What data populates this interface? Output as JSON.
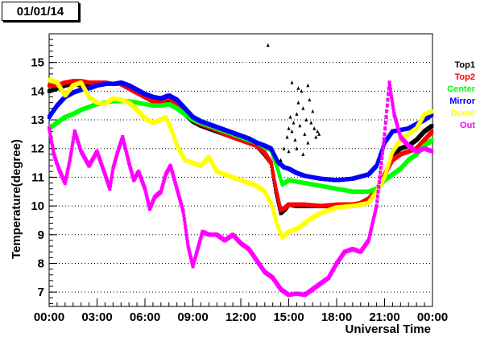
{
  "chart_data": {
    "type": "scatter",
    "title": "01/01/14",
    "xlabel": "Universal Time",
    "ylabel": "Temperature(degree)",
    "xlim": [
      0,
      24
    ],
    "ylim": [
      6.5,
      16
    ],
    "x_ticks": [
      "00:00",
      "03:00",
      "06:00",
      "09:00",
      "12:00",
      "15:00",
      "18:00",
      "21:00",
      "00:00"
    ],
    "y_ticks": [
      7,
      8,
      9,
      10,
      11,
      12,
      13,
      14,
      15
    ],
    "grid": "horizontal-dotted",
    "legend_position": "right",
    "series": [
      {
        "name": "Top1",
        "color": "#000000",
        "points": [
          [
            0,
            14.0
          ],
          [
            0.5,
            14.1
          ],
          [
            1,
            14.2
          ],
          [
            1.5,
            14.25
          ],
          [
            2,
            14.2
          ],
          [
            2.5,
            14.2
          ],
          [
            3,
            14.2
          ],
          [
            3.5,
            14.25
          ],
          [
            4,
            14.25
          ],
          [
            4.5,
            14.25
          ],
          [
            5,
            14.1
          ],
          [
            5.5,
            13.95
          ],
          [
            6,
            13.8
          ],
          [
            6.5,
            13.65
          ],
          [
            7,
            13.6
          ],
          [
            7.5,
            13.7
          ],
          [
            8,
            13.5
          ],
          [
            8.5,
            13.2
          ],
          [
            9,
            12.95
          ],
          [
            9.5,
            12.8
          ],
          [
            10,
            12.7
          ],
          [
            10.5,
            12.6
          ],
          [
            11,
            12.5
          ],
          [
            11.5,
            12.4
          ],
          [
            12,
            12.3
          ],
          [
            12.5,
            12.2
          ],
          [
            13,
            12.1
          ],
          [
            13.5,
            11.8
          ],
          [
            13.9,
            11.5
          ],
          [
            14.2,
            10.5
          ],
          [
            14.5,
            9.75
          ],
          [
            14.8,
            9.9
          ],
          [
            15,
            10.05
          ],
          [
            15.5,
            10.0
          ],
          [
            16,
            10.0
          ],
          [
            17,
            10.0
          ],
          [
            18,
            10.0
          ],
          [
            19,
            10.0
          ],
          [
            19.5,
            10.05
          ],
          [
            20,
            10.2
          ],
          [
            20.5,
            10.5
          ],
          [
            21,
            11.0
          ],
          [
            21.5,
            11.8
          ],
          [
            22,
            12.0
          ],
          [
            22.5,
            12.1
          ],
          [
            23,
            12.3
          ],
          [
            23.5,
            12.6
          ],
          [
            24,
            12.8
          ]
        ]
      },
      {
        "name": "Top2",
        "color": "#ff0000",
        "points": [
          [
            0,
            14.2
          ],
          [
            0.5,
            14.2
          ],
          [
            1,
            14.3
          ],
          [
            1.5,
            14.35
          ],
          [
            2,
            14.35
          ],
          [
            2.5,
            14.3
          ],
          [
            3,
            14.3
          ],
          [
            3.5,
            14.3
          ],
          [
            4,
            14.25
          ],
          [
            4.5,
            14.25
          ],
          [
            5,
            14.1
          ],
          [
            5.5,
            13.95
          ],
          [
            6,
            13.8
          ],
          [
            6.5,
            13.65
          ],
          [
            7,
            13.65
          ],
          [
            7.5,
            13.75
          ],
          [
            8,
            13.55
          ],
          [
            8.5,
            13.25
          ],
          [
            9,
            13.0
          ],
          [
            9.5,
            12.85
          ],
          [
            10,
            12.75
          ],
          [
            10.5,
            12.65
          ],
          [
            11,
            12.5
          ],
          [
            11.5,
            12.4
          ],
          [
            12,
            12.3
          ],
          [
            12.5,
            12.2
          ],
          [
            13,
            12.1
          ],
          [
            13.5,
            11.85
          ],
          [
            13.9,
            11.5
          ],
          [
            14.2,
            10.6
          ],
          [
            14.5,
            9.85
          ],
          [
            14.8,
            9.95
          ],
          [
            15,
            10.05
          ],
          [
            15.5,
            10.05
          ],
          [
            16,
            10.05
          ],
          [
            17,
            10.0
          ],
          [
            18,
            10.05
          ],
          [
            19,
            10.05
          ],
          [
            19.5,
            10.1
          ],
          [
            20,
            10.25
          ],
          [
            20.5,
            10.55
          ],
          [
            21,
            11.1
          ],
          [
            21.5,
            11.6
          ],
          [
            22,
            11.8
          ],
          [
            22.5,
            11.9
          ],
          [
            23,
            12.0
          ],
          [
            23.5,
            12.3
          ],
          [
            24,
            12.6
          ]
        ]
      },
      {
        "name": "Center",
        "color": "#00ff00",
        "points": [
          [
            0,
            12.7
          ],
          [
            0.5,
            12.9
          ],
          [
            1,
            13.1
          ],
          [
            1.5,
            13.2
          ],
          [
            2,
            13.35
          ],
          [
            2.5,
            13.45
          ],
          [
            3,
            13.55
          ],
          [
            3.5,
            13.6
          ],
          [
            4,
            13.65
          ],
          [
            4.5,
            13.65
          ],
          [
            5,
            13.65
          ],
          [
            5.5,
            13.6
          ],
          [
            6,
            13.55
          ],
          [
            6.5,
            13.5
          ],
          [
            7,
            13.5
          ],
          [
            7.5,
            13.55
          ],
          [
            8,
            13.4
          ],
          [
            8.5,
            13.2
          ],
          [
            9,
            13.0
          ],
          [
            9.5,
            12.9
          ],
          [
            10,
            12.8
          ],
          [
            10.5,
            12.7
          ],
          [
            11,
            12.6
          ],
          [
            11.5,
            12.5
          ],
          [
            12,
            12.4
          ],
          [
            12.5,
            12.3
          ],
          [
            13,
            12.2
          ],
          [
            13.5,
            12.05
          ],
          [
            13.9,
            11.95
          ],
          [
            14.3,
            11.3
          ],
          [
            14.6,
            10.75
          ],
          [
            15,
            10.9
          ],
          [
            15.5,
            10.85
          ],
          [
            16,
            10.8
          ],
          [
            17,
            10.7
          ],
          [
            18,
            10.6
          ],
          [
            19,
            10.5
          ],
          [
            20,
            10.5
          ],
          [
            20.5,
            10.6
          ],
          [
            21,
            10.9
          ],
          [
            21.5,
            11.1
          ],
          [
            22,
            11.3
          ],
          [
            22.5,
            11.6
          ],
          [
            23,
            11.8
          ],
          [
            23.5,
            12.1
          ],
          [
            24,
            12.3
          ]
        ]
      },
      {
        "name": "Mirror",
        "color": "#0000ff",
        "points": [
          [
            0,
            13.1
          ],
          [
            0.5,
            13.5
          ],
          [
            1,
            13.8
          ],
          [
            1.5,
            13.95
          ],
          [
            2,
            14.05
          ],
          [
            2.5,
            14.1
          ],
          [
            3,
            14.2
          ],
          [
            3.5,
            14.25
          ],
          [
            4,
            14.25
          ],
          [
            4.5,
            14.3
          ],
          [
            5,
            14.2
          ],
          [
            5.5,
            14.05
          ],
          [
            6,
            13.9
          ],
          [
            6.5,
            13.8
          ],
          [
            7,
            13.75
          ],
          [
            7.5,
            13.85
          ],
          [
            8,
            13.7
          ],
          [
            8.5,
            13.4
          ],
          [
            9,
            13.1
          ],
          [
            9.5,
            12.95
          ],
          [
            10,
            12.85
          ],
          [
            10.5,
            12.75
          ],
          [
            11,
            12.65
          ],
          [
            11.5,
            12.55
          ],
          [
            12,
            12.45
          ],
          [
            12.5,
            12.35
          ],
          [
            13,
            12.2
          ],
          [
            13.5,
            12.1
          ],
          [
            13.9,
            12.0
          ],
          [
            14.3,
            11.55
          ],
          [
            14.7,
            11.35
          ],
          [
            15,
            11.3
          ],
          [
            15.5,
            11.15
          ],
          [
            16,
            11.05
          ],
          [
            17,
            10.95
          ],
          [
            18,
            10.9
          ],
          [
            19,
            10.95
          ],
          [
            20,
            11.1
          ],
          [
            20.5,
            11.4
          ],
          [
            21,
            12.2
          ],
          [
            21.5,
            12.6
          ],
          [
            22,
            12.65
          ],
          [
            22.5,
            12.7
          ],
          [
            23,
            12.85
          ],
          [
            23.5,
            13.0
          ],
          [
            24,
            13.2
          ]
        ]
      },
      {
        "name": "Dome",
        "color": "#ffff00",
        "points": [
          [
            0,
            14.4
          ],
          [
            0.5,
            14.3
          ],
          [
            1,
            13.85
          ],
          [
            1.5,
            14.2
          ],
          [
            2,
            14.3
          ],
          [
            2.5,
            13.8
          ],
          [
            3,
            13.6
          ],
          [
            3.5,
            13.55
          ],
          [
            4,
            13.75
          ],
          [
            4.5,
            13.7
          ],
          [
            5,
            13.6
          ],
          [
            5.5,
            13.35
          ],
          [
            6,
            13.05
          ],
          [
            6.5,
            12.9
          ],
          [
            7,
            13.0
          ],
          [
            7.3,
            13.1
          ],
          [
            7.7,
            12.6
          ],
          [
            8,
            12.1
          ],
          [
            8.5,
            11.6
          ],
          [
            9,
            11.5
          ],
          [
            9.5,
            11.4
          ],
          [
            10,
            11.7
          ],
          [
            10.5,
            11.2
          ],
          [
            11,
            11.1
          ],
          [
            11.5,
            11.0
          ],
          [
            12,
            10.9
          ],
          [
            12.5,
            10.8
          ],
          [
            13,
            10.7
          ],
          [
            13.5,
            10.5
          ],
          [
            13.9,
            10.1
          ],
          [
            14.3,
            9.3
          ],
          [
            14.6,
            8.9
          ],
          [
            15,
            9.1
          ],
          [
            15.5,
            9.2
          ],
          [
            16,
            9.4
          ],
          [
            16.5,
            9.6
          ],
          [
            17,
            9.75
          ],
          [
            17.5,
            9.85
          ],
          [
            18,
            9.95
          ],
          [
            19,
            10.0
          ],
          [
            20,
            10.1
          ],
          [
            20.5,
            10.5
          ],
          [
            21,
            11.0
          ],
          [
            21.5,
            11.9
          ],
          [
            22,
            12.3
          ],
          [
            22.5,
            12.5
          ],
          [
            23,
            12.7
          ],
          [
            23.5,
            13.2
          ],
          [
            24,
            13.3
          ]
        ]
      },
      {
        "name": "Out",
        "color": "#ff00ff",
        "points": [
          [
            0,
            12.7
          ],
          [
            0.3,
            11.8
          ],
          [
            0.6,
            11.3
          ],
          [
            1,
            10.8
          ],
          [
            1.3,
            11.6
          ],
          [
            1.6,
            12.6
          ],
          [
            2,
            11.9
          ],
          [
            2.5,
            11.4
          ],
          [
            3,
            11.9
          ],
          [
            3.5,
            11.1
          ],
          [
            3.8,
            10.6
          ],
          [
            4,
            11.3
          ],
          [
            4.3,
            11.9
          ],
          [
            4.6,
            12.4
          ],
          [
            5,
            11.5
          ],
          [
            5.3,
            10.9
          ],
          [
            5.6,
            11.2
          ],
          [
            6,
            10.6
          ],
          [
            6.3,
            9.9
          ],
          [
            6.6,
            10.3
          ],
          [
            7,
            10.5
          ],
          [
            7.3,
            11.1
          ],
          [
            7.6,
            11.4
          ],
          [
            8,
            10.6
          ],
          [
            8.4,
            9.8
          ],
          [
            8.7,
            8.6
          ],
          [
            9,
            7.9
          ],
          [
            9.3,
            8.5
          ],
          [
            9.6,
            9.1
          ],
          [
            10,
            9.0
          ],
          [
            10.5,
            9.0
          ],
          [
            11,
            8.8
          ],
          [
            11.5,
            9.0
          ],
          [
            12,
            8.7
          ],
          [
            12.5,
            8.5
          ],
          [
            13,
            8.1
          ],
          [
            13.5,
            7.7
          ],
          [
            14,
            7.5
          ],
          [
            14.5,
            7.1
          ],
          [
            15,
            6.9
          ],
          [
            15.5,
            6.95
          ],
          [
            16,
            6.9
          ],
          [
            16.5,
            7.1
          ],
          [
            17,
            7.3
          ],
          [
            17.5,
            7.5
          ],
          [
            18,
            8.0
          ],
          [
            18.5,
            8.4
          ],
          [
            19,
            8.5
          ],
          [
            19.5,
            8.4
          ],
          [
            20,
            8.8
          ],
          [
            20.5,
            10.0
          ],
          [
            21,
            12.5
          ],
          [
            21.3,
            14.3
          ],
          [
            21.6,
            13.2
          ],
          [
            22,
            12.4
          ],
          [
            22.5,
            12.1
          ],
          [
            23,
            11.9
          ],
          [
            23.5,
            12.0
          ],
          [
            24,
            11.9
          ]
        ]
      }
    ],
    "extra_points": [
      [
        13.7,
        15.6
      ],
      [
        14.5,
        11.6
      ],
      [
        14.7,
        12.0
      ],
      [
        14.9,
        12.4
      ],
      [
        15.0,
        12.7
      ],
      [
        15.1,
        13.1
      ],
      [
        15.2,
        12.6
      ],
      [
        15.3,
        12.9
      ],
      [
        15.4,
        12.3
      ],
      [
        15.5,
        13.2
      ],
      [
        15.6,
        13.6
      ],
      [
        15.7,
        12.8
      ],
      [
        15.8,
        14.0
      ],
      [
        15.9,
        13.4
      ],
      [
        16.0,
        12.5
      ],
      [
        16.1,
        13.0
      ],
      [
        16.2,
        14.2
      ],
      [
        16.3,
        13.7
      ],
      [
        16.4,
        12.9
      ],
      [
        16.5,
        13.3
      ],
      [
        16.6,
        12.7
      ],
      [
        16.7,
        12.4
      ],
      [
        16.8,
        12.6
      ],
      [
        16.9,
        12.5
      ],
      [
        15.5,
        12.0
      ],
      [
        15.9,
        11.8
      ],
      [
        16.2,
        12.2
      ],
      [
        15.2,
        14.3
      ],
      [
        15.6,
        14.1
      ],
      [
        15.0,
        11.9
      ]
    ]
  }
}
